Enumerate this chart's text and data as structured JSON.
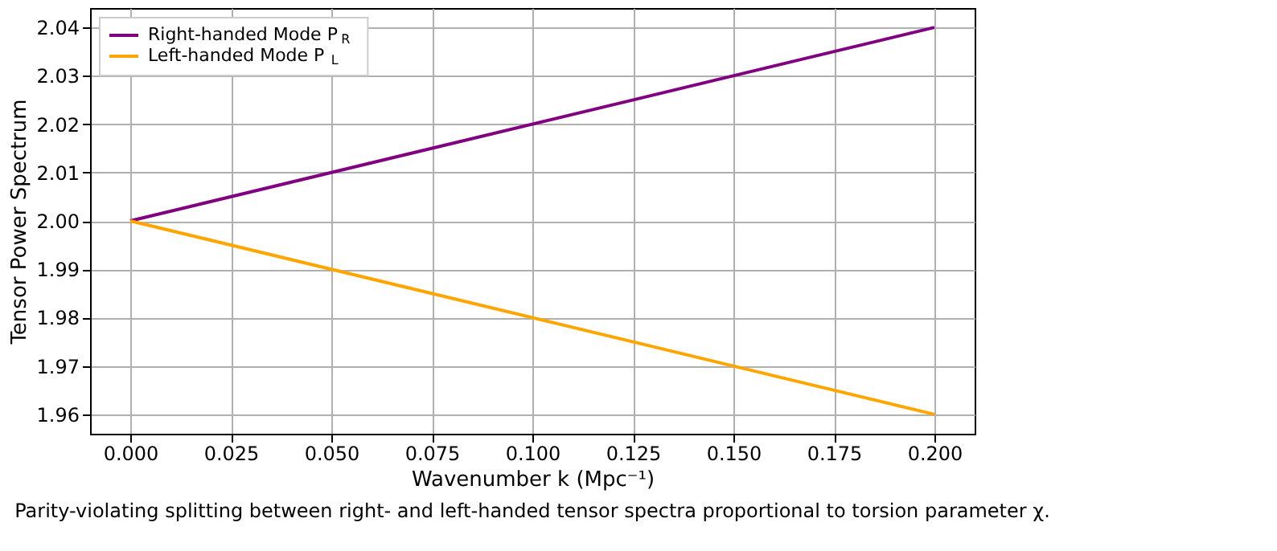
{
  "chart_data": {
    "type": "line",
    "xlabel": "Wavenumber k (Mpc⁻¹)",
    "ylabel": "Tensor Power Spectrum",
    "x": [
      0.0,
      0.2
    ],
    "series": [
      {
        "name": "Right-handed Mode P$_{R}$",
        "color": "#800080",
        "values": [
          2.0,
          2.04
        ]
      },
      {
        "name": "Left-handed Mode P$_{L}$",
        "color": "#ffa500",
        "values": [
          2.0,
          1.96
        ]
      }
    ],
    "xlim": [
      -0.01,
      0.21
    ],
    "xticks": [
      {
        "value": 0,
        "label": "0.000"
      },
      0.025,
      {
        "value": 0.05,
        "label": "0.050"
      },
      0.075,
      {
        "value": 0.1,
        "label": "0.100"
      },
      0.125,
      {
        "value": 0.15,
        "label": "0.150"
      },
      0.175,
      {
        "value": 0.2,
        "label": "0.200"
      }
    ],
    "ylim": [
      1.956,
      2.044
    ],
    "yticks": [
      {
        "value": 1.96,
        "label": "1.96"
      },
      1.97,
      1.98,
      1.99,
      {
        "value": 2.0,
        "label": "2.00"
      },
      2.01,
      2.02,
      2.03,
      2.04
    ],
    "grid": true,
    "legend": "top left",
    "marker": "none",
    "line_style": "solid",
    "annotations": [
      "Parity-violating splitting between right- and left-handed tensor spectra proportional to torsion parameter χ."
    ]
  }
}
